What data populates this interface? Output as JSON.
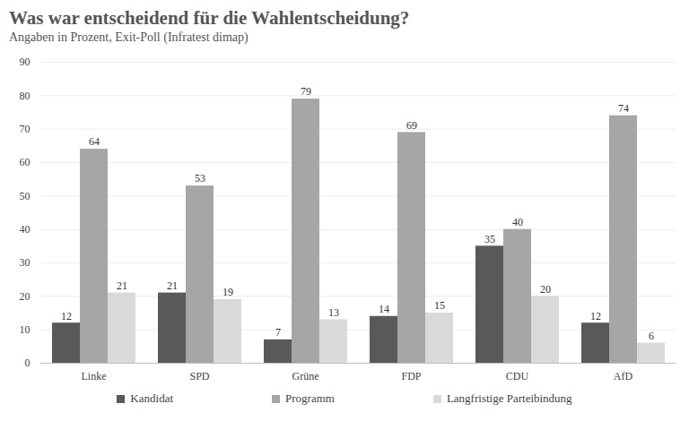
{
  "chart_data": {
    "type": "bar",
    "title": "Was war entscheidend für die Wahlentscheidung?",
    "subtitle": "Angaben in Prozent, Exit-Poll (Infratest dimap)",
    "categories": [
      "Linke",
      "SPD",
      "Grüne",
      "FDP",
      "CDU",
      "AfD"
    ],
    "series": [
      {
        "name": "Kandidat",
        "color": "#595959",
        "values": [
          12,
          21,
          7,
          14,
          35,
          12
        ]
      },
      {
        "name": "Programm",
        "color": "#a6a6a6",
        "values": [
          64,
          53,
          79,
          69,
          40,
          74
        ]
      },
      {
        "name": "Langfristige Parteibindung",
        "color": "#d9d9d9",
        "values": [
          21,
          19,
          13,
          15,
          20,
          6
        ]
      }
    ],
    "ylim": [
      0,
      90
    ],
    "yticks": [
      0,
      10,
      20,
      30,
      40,
      50,
      60,
      70,
      80,
      90
    ],
    "grid": true,
    "data_labels": true,
    "legend": "bottom"
  }
}
